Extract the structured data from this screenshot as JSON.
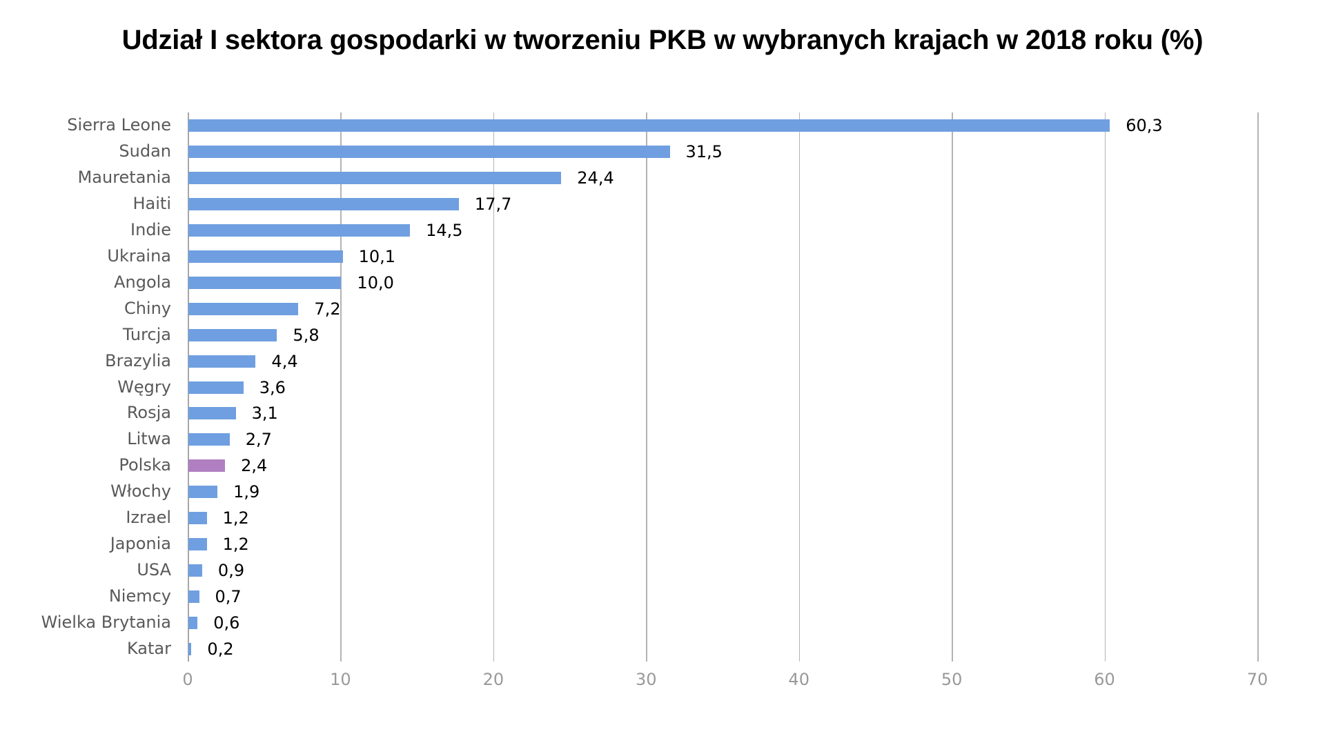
{
  "title": "Udział I sektora gospodarki w tworzeniu PKB w wybranych krajach w 2018 roku (%)",
  "colors": {
    "bar": "#6f9fe0",
    "highlight": "#b07fc2",
    "grid": "#b3b3b3",
    "category_text": "#595959",
    "tick_text": "#999999"
  },
  "chart_data": {
    "type": "bar",
    "orientation": "horizontal",
    "title": "Udział I sektora gospodarki w tworzeniu PKB w wybranych krajach w 2018 roku (%)",
    "xlabel": "",
    "ylabel": "",
    "xlim": [
      0,
      70
    ],
    "xticks": [
      0,
      10,
      20,
      30,
      40,
      50,
      60,
      70
    ],
    "xtick_labels": [
      "0",
      "10",
      "20",
      "30",
      "40",
      "50",
      "60",
      "70"
    ],
    "grid": "vertical",
    "legend": "none",
    "categories": [
      "Sierra Leone",
      "Sudan",
      "Mauretania",
      "Haiti",
      "Indie",
      "Ukraina",
      "Angola",
      "Chiny",
      "Turcja",
      "Brazylia",
      "Węgry",
      "Rosja",
      "Litwa",
      "Polska",
      "Włochy",
      "Izrael",
      "Japonia",
      "USA",
      "Niemcy",
      "Wielka Brytania",
      "Katar"
    ],
    "values": [
      60.3,
      31.5,
      24.4,
      17.7,
      14.5,
      10.1,
      10.0,
      7.2,
      5.8,
      4.4,
      3.6,
      3.1,
      2.7,
      2.4,
      1.9,
      1.2,
      1.2,
      0.9,
      0.7,
      0.6,
      0.2
    ],
    "value_labels": [
      "60,3",
      "31,5",
      "24,4",
      "17,7",
      "14,5",
      "10,1",
      "10,0",
      "7,2",
      "5,8",
      "4,4",
      "3,6",
      "3,1",
      "2,7",
      "2,4",
      "1,9",
      "1,2",
      "1,2",
      "0,9",
      "0,7",
      "0,6",
      "0,2"
    ],
    "highlighted_category": "Polska"
  }
}
